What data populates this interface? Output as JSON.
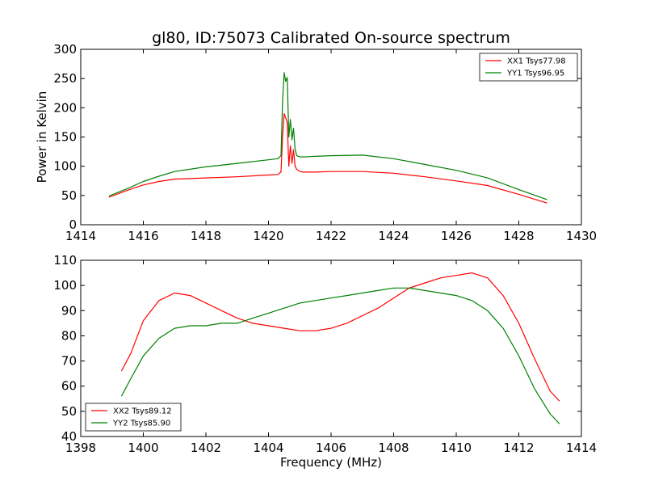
{
  "chart_data": [
    {
      "type": "line",
      "title": "gl80, ID:75073 Calibrated On-source spectrum",
      "xlabel": "",
      "ylabel": "Power in Kelvin",
      "xlim": [
        1414,
        1430
      ],
      "ylim": [
        0,
        300
      ],
      "xticks": [
        1414,
        1416,
        1418,
        1420,
        1422,
        1424,
        1426,
        1428,
        1430
      ],
      "yticks": [
        0,
        50,
        100,
        150,
        200,
        250,
        300
      ],
      "grid": false,
      "legend_position": "top-right",
      "series": [
        {
          "name": "XX1 Tsys77.98",
          "color": "#ff0000",
          "x": [
            1414.9,
            1415.5,
            1416.0,
            1416.5,
            1417.0,
            1418.0,
            1419.0,
            1420.0,
            1420.3,
            1420.4,
            1420.45,
            1420.5,
            1420.6,
            1420.65,
            1420.7,
            1420.75,
            1420.8,
            1420.85,
            1420.9,
            1421.0,
            1421.1,
            1421.5,
            1422.0,
            1423.0,
            1424.0,
            1425.0,
            1426.0,
            1427.0,
            1428.0,
            1428.9
          ],
          "y": [
            47,
            59,
            68,
            74,
            78,
            80,
            82,
            85,
            86,
            90,
            150,
            190,
            175,
            100,
            135,
            105,
            128,
            100,
            95,
            91,
            90,
            90,
            91,
            91,
            88,
            82,
            75,
            67,
            52,
            37
          ]
        },
        {
          "name": "YY1 Tsys96.95",
          "color": "#008000",
          "x": [
            1414.9,
            1415.5,
            1416.0,
            1416.5,
            1417.0,
            1418.0,
            1419.0,
            1420.0,
            1420.3,
            1420.4,
            1420.45,
            1420.5,
            1420.55,
            1420.6,
            1420.65,
            1420.7,
            1420.75,
            1420.8,
            1420.85,
            1420.9,
            1421.0,
            1421.1,
            1421.5,
            1422.0,
            1423.0,
            1424.0,
            1425.0,
            1426.0,
            1427.0,
            1428.0,
            1428.9
          ],
          "y": [
            49,
            62,
            74,
            83,
            91,
            99,
            105,
            111,
            113,
            118,
            210,
            260,
            245,
            252,
            150,
            180,
            145,
            165,
            130,
            118,
            116,
            116,
            117,
            118,
            119,
            113,
            103,
            93,
            80,
            60,
            43
          ]
        }
      ]
    },
    {
      "type": "line",
      "title": "",
      "xlabel": "Frequency (MHz)",
      "ylabel": "",
      "xlim": [
        1398,
        1414
      ],
      "ylim": [
        40,
        110
      ],
      "xticks": [
        1398,
        1400,
        1402,
        1404,
        1406,
        1408,
        1410,
        1412,
        1414
      ],
      "yticks": [
        40,
        50,
        60,
        70,
        80,
        90,
        100,
        110
      ],
      "grid": false,
      "legend_position": "bottom-left",
      "series": [
        {
          "name": "XX2 Tsys89.12",
          "color": "#ff0000",
          "x": [
            1399.3,
            1399.6,
            1400.0,
            1400.5,
            1401.0,
            1401.5,
            1402.0,
            1402.5,
            1403.0,
            1403.5,
            1404.0,
            1404.5,
            1405.0,
            1405.5,
            1406.0,
            1406.5,
            1407.0,
            1407.5,
            1408.0,
            1408.5,
            1409.0,
            1409.5,
            1410.0,
            1410.5,
            1411.0,
            1411.5,
            1412.0,
            1412.5,
            1413.0,
            1413.3
          ],
          "y": [
            66,
            73,
            86,
            94,
            97,
            96,
            93,
            90,
            87,
            85,
            84,
            83,
            82,
            82,
            83,
            85,
            88,
            91,
            95,
            99,
            101,
            103,
            104,
            105,
            103,
            96,
            85,
            71,
            58,
            54
          ]
        },
        {
          "name": "YY2 Tsys85.90",
          "color": "#008000",
          "x": [
            1399.3,
            1399.6,
            1400.0,
            1400.5,
            1401.0,
            1401.5,
            1402.0,
            1402.5,
            1403.0,
            1403.5,
            1404.0,
            1404.5,
            1405.0,
            1405.5,
            1406.0,
            1406.5,
            1407.0,
            1407.5,
            1408.0,
            1408.5,
            1409.0,
            1409.5,
            1410.0,
            1410.5,
            1411.0,
            1411.5,
            1412.0,
            1412.5,
            1413.0,
            1413.3
          ],
          "y": [
            56,
            63,
            72,
            79,
            83,
            84,
            84,
            85,
            85,
            87,
            89,
            91,
            93,
            94,
            95,
            96,
            97,
            98,
            99,
            99,
            98,
            97,
            96,
            94,
            90,
            83,
            72,
            59,
            49,
            45
          ]
        }
      ]
    }
  ]
}
